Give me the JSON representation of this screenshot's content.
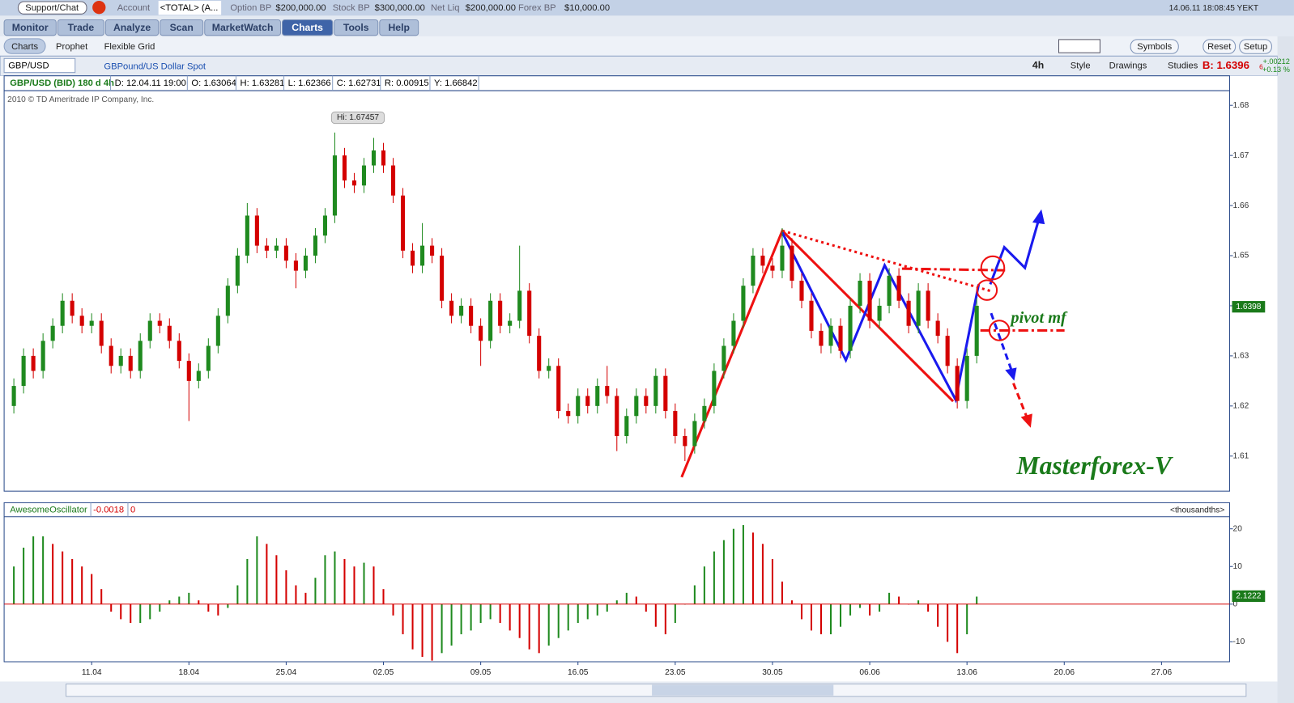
{
  "ui": {
    "top_bar": {
      "support": "Support/Chat",
      "account_label": "Account",
      "account": "<TOTAL> (A...",
      "option_bp_label": "Option BP",
      "option_bp": "$200,000.00",
      "stock_bp_label": "Stock BP",
      "stock_bp": "$300,000.00",
      "net_liq_label": "Net Liq",
      "net_liq": "$200,000.00",
      "forex_bp_label": "Forex BP",
      "forex_bp": "$10,000.00",
      "clock": "14.06.11 18:08:45 YEKT"
    },
    "tabs": [
      "Monitor",
      "Trade",
      "Analyze",
      "Scan",
      "MarketWatch",
      "Charts",
      "Tools",
      "Help"
    ],
    "active_tab": 5,
    "subtabs": [
      "Charts",
      "Prophet",
      "Flexible Grid"
    ],
    "buttons": [
      "Symbols",
      "Reset",
      "Setup"
    ],
    "chart_toolbar": {
      "symbol": "GBP/USD",
      "description": "GBPound/US Dollar Spot",
      "aggregation": "4h",
      "style": "Style",
      "drawings": "Drawings",
      "studies": "Studies",
      "bid": "B: 1.6396",
      "bid_fraction": "6",
      "change": "+.00212",
      "change_pct": "+0.13 %"
    }
  },
  "chart_data": [
    {
      "type": "candlestick",
      "info": [
        "GBP/USD (BID) 180 d 4h",
        "D: 12.04.11 19:00",
        "O: 1.63064",
        "H: 1.63281",
        "L: 1.62366",
        "C: 1.62731",
        "R: 0.00915",
        "Y: 1.66842"
      ],
      "copyright": "2010 © TD Ameritrade IP Company, Inc.",
      "high_label": "Hi: 1.67457",
      "high_index": 33,
      "last_price": 1.6398,
      "pivot_label": "pivot mf",
      "brand": "Masterforex-V",
      "up_color": "#1f8a1f",
      "down_color": "#d40000",
      "xlim": [
        -1,
        125
      ],
      "ylim": [
        1.603,
        1.6826
      ],
      "yticks": [
        1.61,
        1.62,
        1.63,
        1.64,
        1.65,
        1.66,
        1.67,
        1.68
      ],
      "x": [
        0,
        1,
        2,
        3,
        4,
        5,
        6,
        7,
        8,
        9,
        10,
        11,
        12,
        13,
        14,
        15,
        16,
        17,
        18,
        19,
        20,
        21,
        22,
        23,
        24,
        25,
        26,
        27,
        28,
        29,
        30,
        31,
        32,
        33,
        34,
        35,
        36,
        37,
        38,
        39,
        40,
        41,
        42,
        43,
        44,
        45,
        46,
        47,
        48,
        49,
        50,
        51,
        52,
        53,
        54,
        55,
        56,
        57,
        58,
        59,
        60,
        61,
        62,
        63,
        64,
        65,
        66,
        67,
        68,
        69,
        70,
        71,
        72,
        73,
        74,
        75,
        76,
        77,
        78,
        79,
        80,
        81,
        82,
        83,
        84,
        85,
        86,
        87,
        88,
        89,
        90,
        91,
        92,
        93,
        94,
        95,
        96,
        97,
        98,
        99
      ],
      "ohlc": [
        [
          1.62,
          1.6255,
          1.6185,
          1.624
        ],
        [
          1.624,
          1.6315,
          1.6225,
          1.63
        ],
        [
          1.63,
          1.6315,
          1.6255,
          1.627
        ],
        [
          1.627,
          1.6345,
          1.6255,
          1.633
        ],
        [
          1.633,
          1.6375,
          1.6315,
          1.636
        ],
        [
          1.636,
          1.6425,
          1.6345,
          1.641
        ],
        [
          1.641,
          1.6425,
          1.6365,
          1.638
        ],
        [
          1.638,
          1.6395,
          1.6345,
          1.636
        ],
        [
          1.636,
          1.6385,
          1.6345,
          1.637
        ],
        [
          1.637,
          1.6385,
          1.6305,
          1.632
        ],
        [
          1.632,
          1.6335,
          1.6265,
          1.628
        ],
        [
          1.628,
          1.6315,
          1.6265,
          1.63
        ],
        [
          1.63,
          1.6315,
          1.6255,
          1.627
        ],
        [
          1.627,
          1.6345,
          1.6255,
          1.633
        ],
        [
          1.633,
          1.6385,
          1.6315,
          1.637
        ],
        [
          1.637,
          1.6385,
          1.6345,
          1.636
        ],
        [
          1.636,
          1.6375,
          1.6315,
          1.633
        ],
        [
          1.633,
          1.6345,
          1.6275,
          1.629
        ],
        [
          1.629,
          1.6305,
          1.617,
          1.625
        ],
        [
          1.625,
          1.6285,
          1.6235,
          1.627
        ],
        [
          1.627,
          1.6335,
          1.6255,
          1.632
        ],
        [
          1.632,
          1.6395,
          1.6305,
          1.638
        ],
        [
          1.638,
          1.6455,
          1.6365,
          1.644
        ],
        [
          1.644,
          1.6515,
          1.6425,
          1.65
        ],
        [
          1.65,
          1.6605,
          1.6485,
          1.658
        ],
        [
          1.658,
          1.6595,
          1.6505,
          1.652
        ],
        [
          1.652,
          1.6535,
          1.6495,
          1.651
        ],
        [
          1.651,
          1.6535,
          1.6495,
          1.652
        ],
        [
          1.652,
          1.6535,
          1.6475,
          1.649
        ],
        [
          1.649,
          1.6505,
          1.6435,
          1.647
        ],
        [
          1.647,
          1.6515,
          1.6455,
          1.65
        ],
        [
          1.65,
          1.6555,
          1.6485,
          1.654
        ],
        [
          1.654,
          1.6595,
          1.6525,
          1.658
        ],
        [
          1.658,
          1.67457,
          1.6565,
          1.67
        ],
        [
          1.67,
          1.6715,
          1.6635,
          1.665
        ],
        [
          1.665,
          1.6665,
          1.6625,
          1.664
        ],
        [
          1.664,
          1.6695,
          1.6625,
          1.668
        ],
        [
          1.668,
          1.6735,
          1.6665,
          1.671
        ],
        [
          1.671,
          1.6725,
          1.6665,
          1.668
        ],
        [
          1.668,
          1.6695,
          1.6605,
          1.662
        ],
        [
          1.662,
          1.6635,
          1.6495,
          1.651
        ],
        [
          1.651,
          1.6525,
          1.6465,
          1.648
        ],
        [
          1.648,
          1.6565,
          1.6465,
          1.652
        ],
        [
          1.652,
          1.6535,
          1.6485,
          1.65
        ],
        [
          1.65,
          1.6515,
          1.6395,
          1.641
        ],
        [
          1.641,
          1.6425,
          1.6365,
          1.638
        ],
        [
          1.638,
          1.6415,
          1.6365,
          1.64
        ],
        [
          1.64,
          1.6415,
          1.6345,
          1.636
        ],
        [
          1.636,
          1.6375,
          1.628,
          1.633
        ],
        [
          1.633,
          1.6425,
          1.6315,
          1.641
        ],
        [
          1.641,
          1.6425,
          1.6345,
          1.636
        ],
        [
          1.636,
          1.6385,
          1.6345,
          1.637
        ],
        [
          1.637,
          1.652,
          1.6355,
          1.643
        ],
        [
          1.643,
          1.6445,
          1.6325,
          1.634
        ],
        [
          1.634,
          1.6355,
          1.6255,
          1.627
        ],
        [
          1.627,
          1.6295,
          1.6255,
          1.628
        ],
        [
          1.628,
          1.6295,
          1.6175,
          1.619
        ],
        [
          1.619,
          1.6205,
          1.6165,
          1.618
        ],
        [
          1.618,
          1.6235,
          1.6165,
          1.622
        ],
        [
          1.622,
          1.6235,
          1.6185,
          1.62
        ],
        [
          1.62,
          1.6255,
          1.6185,
          1.624
        ],
        [
          1.624,
          1.628,
          1.6205,
          1.622
        ],
        [
          1.622,
          1.6235,
          1.611,
          1.614
        ],
        [
          1.614,
          1.6195,
          1.6125,
          1.618
        ],
        [
          1.618,
          1.6235,
          1.6165,
          1.622
        ],
        [
          1.622,
          1.6235,
          1.6185,
          1.62
        ],
        [
          1.62,
          1.6275,
          1.6185,
          1.626
        ],
        [
          1.626,
          1.6275,
          1.6175,
          1.619
        ],
        [
          1.619,
          1.6205,
          1.6125,
          1.614
        ],
        [
          1.614,
          1.6155,
          1.609,
          1.612
        ],
        [
          1.612,
          1.6185,
          1.6105,
          1.617
        ],
        [
          1.617,
          1.6215,
          1.6155,
          1.62
        ],
        [
          1.62,
          1.6285,
          1.6185,
          1.627
        ],
        [
          1.627,
          1.6335,
          1.6255,
          1.632
        ],
        [
          1.632,
          1.6385,
          1.6305,
          1.637
        ],
        [
          1.637,
          1.6455,
          1.6355,
          1.644
        ],
        [
          1.644,
          1.6515,
          1.6425,
          1.65
        ],
        [
          1.65,
          1.6515,
          1.6465,
          1.648
        ],
        [
          1.648,
          1.6495,
          1.6455,
          1.647
        ],
        [
          1.647,
          1.6555,
          1.6455,
          1.652
        ],
        [
          1.652,
          1.6535,
          1.6435,
          1.645
        ],
        [
          1.645,
          1.6465,
          1.6395,
          1.641
        ],
        [
          1.641,
          1.6425,
          1.6335,
          1.635
        ],
        [
          1.635,
          1.6365,
          1.6305,
          1.632
        ],
        [
          1.632,
          1.6375,
          1.6305,
          1.636
        ],
        [
          1.636,
          1.6375,
          1.6295,
          1.631
        ],
        [
          1.631,
          1.6415,
          1.6295,
          1.64
        ],
        [
          1.64,
          1.6465,
          1.6385,
          1.645
        ],
        [
          1.645,
          1.6465,
          1.6355,
          1.637
        ],
        [
          1.637,
          1.6415,
          1.6355,
          1.64
        ],
        [
          1.64,
          1.6475,
          1.6385,
          1.646
        ],
        [
          1.646,
          1.6475,
          1.6395,
          1.641
        ],
        [
          1.641,
          1.6425,
          1.6345,
          1.636
        ],
        [
          1.636,
          1.6445,
          1.6345,
          1.643
        ],
        [
          1.643,
          1.6445,
          1.6355,
          1.637
        ],
        [
          1.637,
          1.6385,
          1.6325,
          1.634
        ],
        [
          1.634,
          1.6355,
          1.6265,
          1.628
        ],
        [
          1.628,
          1.6295,
          1.6195,
          1.621
        ],
        [
          1.621,
          1.6315,
          1.6195,
          1.63
        ],
        [
          1.63,
          1.6415,
          1.6285,
          1.64
        ]
      ]
    },
    {
      "type": "bar",
      "name": "AwesomeOscillator",
      "header_values": [
        "-0.0018",
        "0"
      ],
      "units": "<thousandths>",
      "last_value": 2.1222,
      "up_color": "#1f8a1f",
      "down_color": "#d40000",
      "zero_line_color": "#d40000",
      "xlim": [
        -1,
        125
      ],
      "ylim": [
        -15.3,
        23
      ],
      "yticks": [
        -10,
        0,
        10,
        20
      ],
      "xticks": [
        {
          "value": 8,
          "label": "11.04"
        },
        {
          "value": 18,
          "label": "18.04"
        },
        {
          "value": 28,
          "label": "25.04"
        },
        {
          "value": 38,
          "label": "02.05"
        },
        {
          "value": 48,
          "label": "09.05"
        },
        {
          "value": 58,
          "label": "16.05"
        },
        {
          "value": 68,
          "label": "23.05"
        },
        {
          "value": 78,
          "label": "30.05"
        },
        {
          "value": 88,
          "label": "06.06"
        },
        {
          "value": 98,
          "label": "13.06"
        },
        {
          "value": 108,
          "label": "20.06"
        },
        {
          "value": 118,
          "label": "27.06"
        }
      ],
      "x": [
        0,
        1,
        2,
        3,
        4,
        5,
        6,
        7,
        8,
        9,
        10,
        11,
        12,
        13,
        14,
        15,
        16,
        17,
        18,
        19,
        20,
        21,
        22,
        23,
        24,
        25,
        26,
        27,
        28,
        29,
        30,
        31,
        32,
        33,
        34,
        35,
        36,
        37,
        38,
        39,
        40,
        41,
        42,
        43,
        44,
        45,
        46,
        47,
        48,
        49,
        50,
        51,
        52,
        53,
        54,
        55,
        56,
        57,
        58,
        59,
        60,
        61,
        62,
        63,
        64,
        65,
        66,
        67,
        68,
        69,
        70,
        71,
        72,
        73,
        74,
        75,
        76,
        77,
        78,
        79,
        80,
        81,
        82,
        83,
        84,
        85,
        86,
        87,
        88,
        89,
        90,
        91,
        92,
        93,
        94,
        95,
        96,
        97,
        98,
        99
      ],
      "values": [
        10,
        15,
        18,
        18,
        16,
        14,
        12,
        10,
        8,
        4,
        -2,
        -4,
        -5,
        -5,
        -4,
        -2,
        1,
        2,
        3,
        1,
        -2,
        -3,
        -1,
        5,
        12,
        18,
        16,
        13,
        9,
        5,
        3,
        7,
        13,
        14,
        12,
        10,
        11,
        10,
        4,
        -3,
        -8,
        -12,
        -14,
        -15,
        -13,
        -11,
        -8,
        -7,
        -5,
        -4,
        -5,
        -7,
        -9,
        -12,
        -13,
        -11,
        -9,
        -7,
        -5,
        -4,
        -3,
        -2,
        1,
        3,
        2,
        -2,
        -6,
        -8,
        -5,
        0,
        5,
        10,
        14,
        17,
        20,
        21,
        19,
        16,
        12,
        6,
        1,
        -4,
        -7,
        -8,
        -8,
        -6,
        -3,
        -1,
        -3,
        -2,
        3,
        2,
        0,
        1,
        -2,
        -6,
        -10,
        -13,
        -8,
        2
      ]
    }
  ]
}
